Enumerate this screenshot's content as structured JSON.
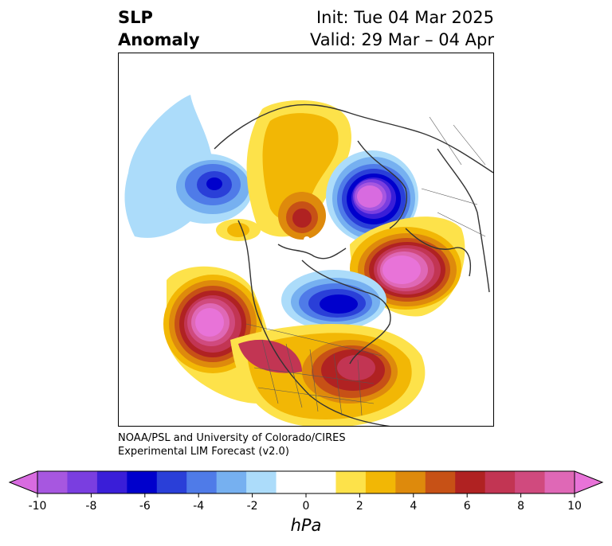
{
  "title": {
    "left_line1": "SLP",
    "left_line2": "Anomaly",
    "right_line1": "Init: Tue 04 Mar 2025",
    "right_line2": "Valid: 29 Mar – 04 Apr"
  },
  "credit": {
    "line1": "NOAA/PSL and University of Colorado/CIRES",
    "line2": "Experimental LIM Forecast (v2.0)"
  },
  "colorbar": {
    "unit": "hPa",
    "tick_labels": [
      "-10",
      "-8",
      "-6",
      "-4",
      "-2",
      "0",
      "2",
      "4",
      "6",
      "8",
      "10"
    ],
    "colors": [
      "#a757e0",
      "#7a3ee0",
      "#3a1ed8",
      "#0000cc",
      "#2a3fd8",
      "#4f7be8",
      "#76b0f0",
      "#acdcfa",
      "#ffffff",
      "#ffffff",
      "#fde24a",
      "#f2b705",
      "#de8a0c",
      "#c75116",
      "#b02222",
      "#c23553",
      "#d04a7e",
      "#df68b6"
    ],
    "extend_min_color": "#d86be0",
    "extend_max_color": "#e873d8"
  },
  "map": {
    "projection": "polar-stereographic",
    "region": "Northern Hemisphere",
    "field": "SLP Anomaly"
  }
}
